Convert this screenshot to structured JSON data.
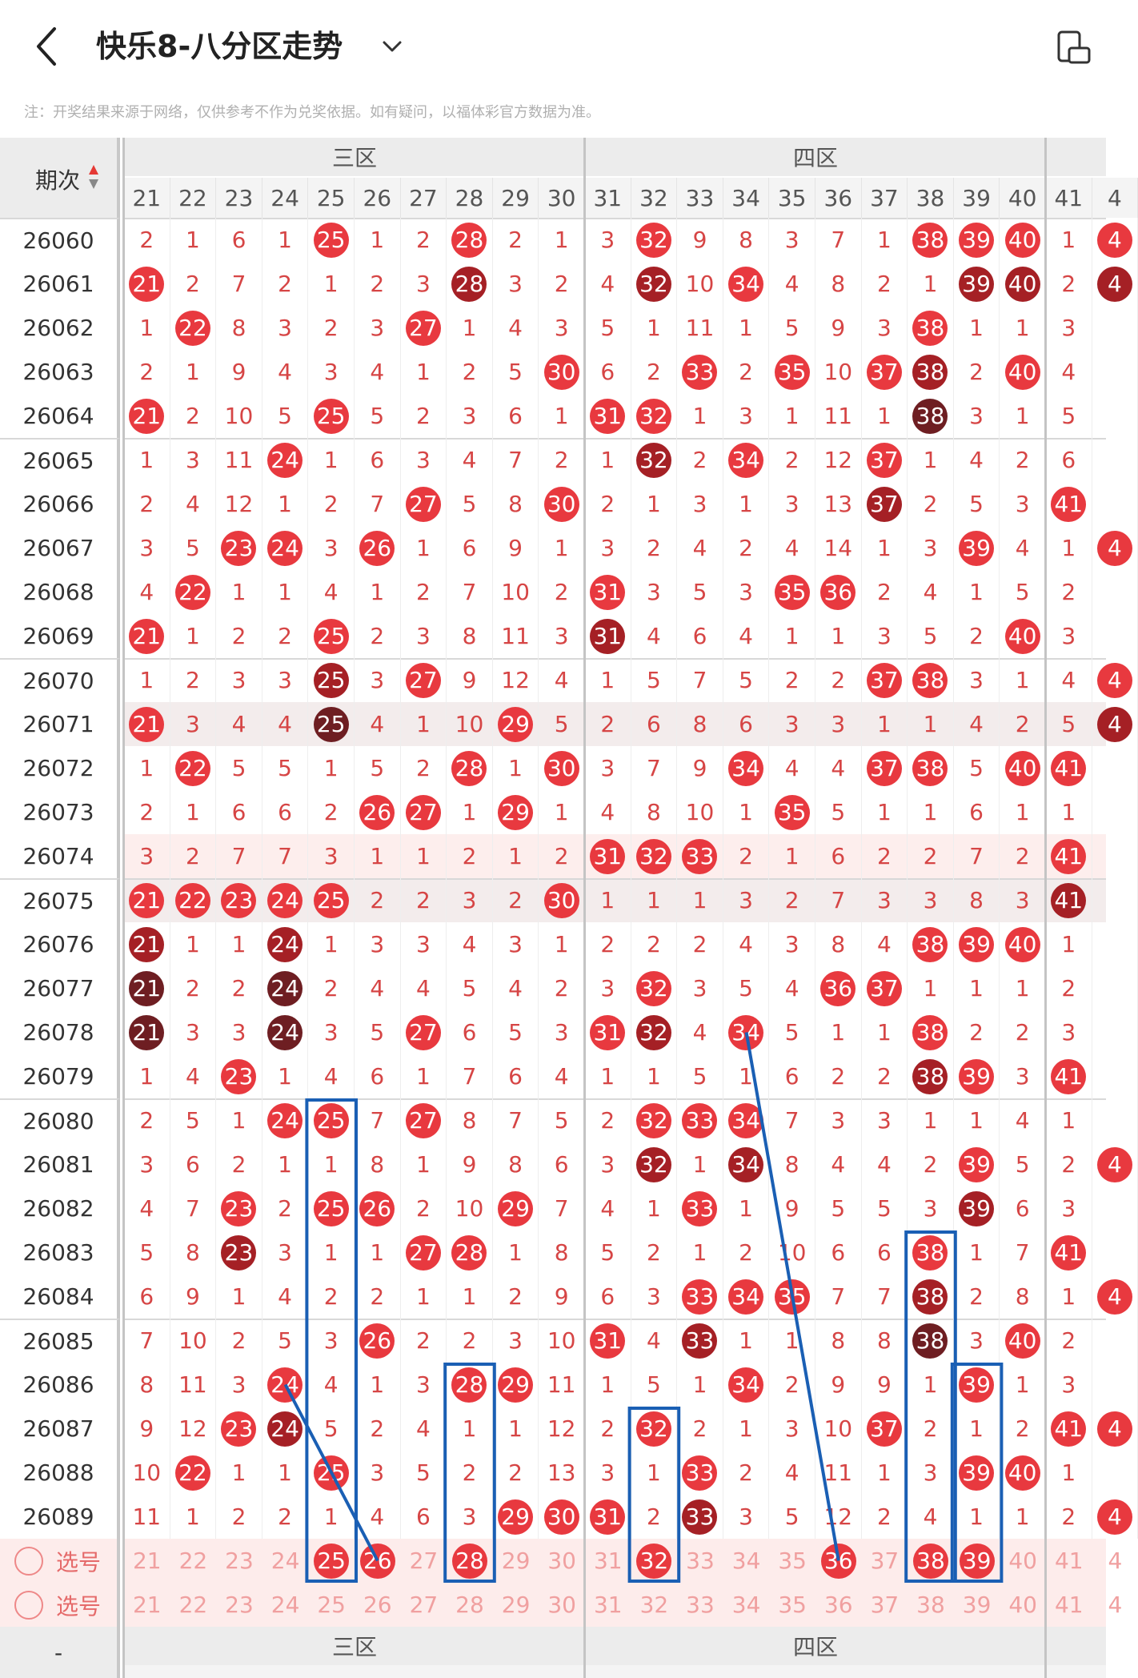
{
  "header": {
    "title": "快乐8-八分区走势",
    "back_icon": "chevron-left-icon",
    "dropdown_icon": "chevron-down-icon",
    "right_icon": "landscape-rotate-icon"
  },
  "notice": "注：开奖结果来源于网络，仅供参考不作为兑奖依据。如有疑问，以福体彩官方数据为准。",
  "table": {
    "period_header": "期次",
    "zones": [
      "三区",
      "四区"
    ],
    "columns": [
      "21",
      "22",
      "23",
      "24",
      "25",
      "26",
      "27",
      "28",
      "29",
      "30",
      "31",
      "32",
      "33",
      "34",
      "35",
      "36",
      "37",
      "38",
      "39",
      "40",
      "41",
      "4"
    ],
    "rows": [
      {
        "period": "26060",
        "cells": [
          "2",
          "1",
          "6",
          "1",
          "25",
          "1",
          "2",
          "28",
          "2",
          "1",
          "3",
          "32",
          "9",
          "8",
          "3",
          "7",
          "1",
          "38",
          "39",
          "40",
          "1",
          "4"
        ]
      },
      {
        "period": "26061",
        "cells": [
          "21",
          "2",
          "7",
          "2",
          "1",
          "2",
          "3",
          "28",
          "3",
          "2",
          "4",
          "32",
          "10",
          "34",
          "4",
          "8",
          "2",
          "1",
          "39",
          "40",
          "2",
          "4"
        ]
      },
      {
        "period": "26062",
        "cells": [
          "1",
          "22",
          "8",
          "3",
          "2",
          "3",
          "27",
          "1",
          "4",
          "3",
          "5",
          "1",
          "11",
          "1",
          "5",
          "9",
          "3",
          "38",
          "1",
          "1",
          "3",
          ""
        ]
      },
      {
        "period": "26063",
        "cells": [
          "2",
          "1",
          "9",
          "4",
          "3",
          "4",
          "1",
          "2",
          "5",
          "30",
          "6",
          "2",
          "33",
          "2",
          "35",
          "10",
          "37",
          "38",
          "2",
          "40",
          "4",
          ""
        ]
      },
      {
        "period": "26064",
        "cells": [
          "21",
          "2",
          "10",
          "5",
          "25",
          "5",
          "2",
          "3",
          "6",
          "1",
          "31",
          "32",
          "1",
          "3",
          "1",
          "11",
          "1",
          "38",
          "3",
          "1",
          "5",
          ""
        ]
      },
      {
        "period": "26065",
        "cells": [
          "1",
          "3",
          "11",
          "24",
          "1",
          "6",
          "3",
          "4",
          "7",
          "2",
          "1",
          "32",
          "2",
          "34",
          "2",
          "12",
          "37",
          "1",
          "4",
          "2",
          "6",
          ""
        ]
      },
      {
        "period": "26066",
        "cells": [
          "2",
          "4",
          "12",
          "1",
          "2",
          "7",
          "27",
          "5",
          "8",
          "30",
          "2",
          "1",
          "3",
          "1",
          "3",
          "13",
          "37",
          "2",
          "5",
          "3",
          "41",
          ""
        ]
      },
      {
        "period": "26067",
        "cells": [
          "3",
          "5",
          "23",
          "24",
          "3",
          "26",
          "1",
          "6",
          "9",
          "1",
          "3",
          "2",
          "4",
          "2",
          "4",
          "14",
          "1",
          "3",
          "39",
          "4",
          "1",
          "4"
        ]
      },
      {
        "period": "26068",
        "cells": [
          "4",
          "22",
          "1",
          "1",
          "4",
          "1",
          "2",
          "7",
          "10",
          "2",
          "31",
          "3",
          "5",
          "3",
          "35",
          "36",
          "2",
          "4",
          "1",
          "5",
          "2",
          ""
        ]
      },
      {
        "period": "26069",
        "cells": [
          "21",
          "1",
          "2",
          "2",
          "25",
          "2",
          "3",
          "8",
          "11",
          "3",
          "31",
          "4",
          "6",
          "4",
          "1",
          "1",
          "3",
          "5",
          "2",
          "40",
          "3",
          ""
        ]
      },
      {
        "period": "26070",
        "cells": [
          "1",
          "2",
          "3",
          "3",
          "25",
          "3",
          "27",
          "9",
          "12",
          "4",
          "1",
          "5",
          "7",
          "5",
          "2",
          "2",
          "37",
          "38",
          "3",
          "1",
          "4",
          "4"
        ]
      },
      {
        "period": "26071",
        "cells": [
          "21",
          "3",
          "4",
          "4",
          "25",
          "4",
          "1",
          "10",
          "29",
          "5",
          "2",
          "6",
          "8",
          "6",
          "3",
          "3",
          "1",
          "1",
          "4",
          "2",
          "5",
          "4"
        ]
      },
      {
        "period": "26072",
        "cells": [
          "1",
          "22",
          "5",
          "5",
          "1",
          "5",
          "2",
          "28",
          "1",
          "30",
          "3",
          "7",
          "9",
          "34",
          "4",
          "4",
          "37",
          "38",
          "5",
          "40",
          "41",
          ""
        ]
      },
      {
        "period": "26073",
        "cells": [
          "2",
          "1",
          "6",
          "6",
          "2",
          "26",
          "27",
          "1",
          "29",
          "1",
          "4",
          "8",
          "10",
          "1",
          "35",
          "5",
          "1",
          "1",
          "6",
          "1",
          "1",
          ""
        ]
      },
      {
        "period": "26074",
        "cells": [
          "3",
          "2",
          "7",
          "7",
          "3",
          "1",
          "1",
          "2",
          "1",
          "2",
          "31",
          "32",
          "33",
          "2",
          "1",
          "6",
          "2",
          "2",
          "7",
          "2",
          "41",
          ""
        ]
      },
      {
        "period": "26075",
        "cells": [
          "21",
          "22",
          "23",
          "24",
          "25",
          "2",
          "2",
          "3",
          "2",
          "30",
          "1",
          "1",
          "1",
          "3",
          "2",
          "7",
          "3",
          "3",
          "8",
          "3",
          "41",
          ""
        ]
      },
      {
        "period": "26076",
        "cells": [
          "21",
          "1",
          "1",
          "24",
          "1",
          "3",
          "3",
          "4",
          "3",
          "1",
          "2",
          "2",
          "2",
          "4",
          "3",
          "8",
          "4",
          "38",
          "39",
          "40",
          "1",
          ""
        ]
      },
      {
        "period": "26077",
        "cells": [
          "21",
          "2",
          "2",
          "24",
          "2",
          "4",
          "4",
          "5",
          "4",
          "2",
          "3",
          "32",
          "3",
          "5",
          "4",
          "36",
          "37",
          "1",
          "1",
          "1",
          "2",
          ""
        ]
      },
      {
        "period": "26078",
        "cells": [
          "21",
          "3",
          "3",
          "24",
          "3",
          "5",
          "27",
          "6",
          "5",
          "3",
          "31",
          "32",
          "4",
          "34",
          "5",
          "1",
          "1",
          "38",
          "2",
          "2",
          "3",
          ""
        ]
      },
      {
        "period": "26079",
        "cells": [
          "1",
          "4",
          "23",
          "1",
          "4",
          "6",
          "1",
          "7",
          "6",
          "4",
          "1",
          "1",
          "5",
          "1",
          "6",
          "2",
          "2",
          "38",
          "39",
          "3",
          "41",
          ""
        ]
      },
      {
        "period": "26080",
        "cells": [
          "2",
          "5",
          "1",
          "24",
          "25",
          "7",
          "27",
          "8",
          "7",
          "5",
          "2",
          "32",
          "33",
          "34",
          "7",
          "3",
          "3",
          "1",
          "1",
          "4",
          "1",
          ""
        ]
      },
      {
        "period": "26081",
        "cells": [
          "3",
          "6",
          "2",
          "1",
          "1",
          "8",
          "1",
          "9",
          "8",
          "6",
          "3",
          "32",
          "1",
          "34",
          "8",
          "4",
          "4",
          "2",
          "39",
          "5",
          "2",
          "4"
        ]
      },
      {
        "period": "26082",
        "cells": [
          "4",
          "7",
          "23",
          "2",
          "25",
          "26",
          "2",
          "10",
          "29",
          "7",
          "4",
          "1",
          "33",
          "1",
          "9",
          "5",
          "5",
          "3",
          "39",
          "6",
          "3",
          ""
        ]
      },
      {
        "period": "26083",
        "cells": [
          "5",
          "8",
          "23",
          "3",
          "1",
          "1",
          "27",
          "28",
          "1",
          "8",
          "5",
          "2",
          "1",
          "2",
          "10",
          "6",
          "6",
          "38",
          "1",
          "7",
          "41",
          ""
        ]
      },
      {
        "period": "26084",
        "cells": [
          "6",
          "9",
          "1",
          "4",
          "2",
          "2",
          "1",
          "1",
          "2",
          "9",
          "6",
          "3",
          "33",
          "34",
          "35",
          "7",
          "7",
          "38",
          "2",
          "8",
          "1",
          "4"
        ]
      },
      {
        "period": "26085",
        "cells": [
          "7",
          "10",
          "2",
          "5",
          "3",
          "26",
          "2",
          "2",
          "3",
          "10",
          "31",
          "4",
          "33",
          "1",
          "1",
          "8",
          "8",
          "38",
          "3",
          "40",
          "2",
          ""
        ]
      },
      {
        "period": "26086",
        "cells": [
          "8",
          "11",
          "3",
          "24",
          "4",
          "1",
          "3",
          "28",
          "29",
          "11",
          "1",
          "5",
          "1",
          "34",
          "2",
          "9",
          "9",
          "1",
          "39",
          "1",
          "3",
          ""
        ]
      },
      {
        "period": "26087",
        "cells": [
          "9",
          "12",
          "23",
          "24",
          "5",
          "2",
          "4",
          "1",
          "1",
          "12",
          "2",
          "32",
          "2",
          "1",
          "3",
          "10",
          "37",
          "2",
          "1",
          "2",
          "41",
          "4"
        ]
      },
      {
        "period": "26088",
        "cells": [
          "10",
          "22",
          "1",
          "1",
          "25",
          "3",
          "5",
          "2",
          "2",
          "13",
          "3",
          "1",
          "33",
          "2",
          "4",
          "11",
          "1",
          "3",
          "39",
          "40",
          "1",
          ""
        ]
      },
      {
        "period": "26089",
        "cells": [
          "11",
          "1",
          "2",
          "2",
          "1",
          "4",
          "6",
          "3",
          "29",
          "30",
          "31",
          "2",
          "33",
          "3",
          "5",
          "12",
          "2",
          "4",
          "1",
          "1",
          "2",
          "4"
        ]
      }
    ],
    "select_label": "选号",
    "select_row1_hits": [
      "25",
      "26",
      "28",
      "32",
      "36",
      "38",
      "39"
    ],
    "footer_zones": [
      "三区",
      "四区"
    ],
    "footer_period_fragment": "-"
  },
  "colors": {
    "hit": "#e8393f",
    "hit_dark": "#a52025",
    "hit_darker": "#6e1e22",
    "miss_text": "#d64545",
    "annotation": "#1a5fb4"
  }
}
